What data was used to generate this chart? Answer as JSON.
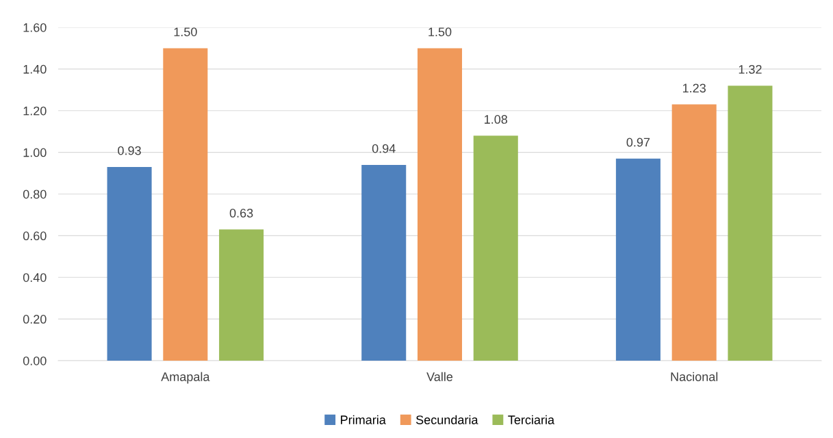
{
  "chart_data": {
    "type": "bar",
    "categories": [
      "Amapala",
      "Valle",
      "Nacional"
    ],
    "series": [
      {
        "name": "Primaria",
        "color": "#4f81bd",
        "values": [
          0.93,
          0.94,
          0.97
        ],
        "value_labels": [
          "0.93",
          "0.94",
          "0.97"
        ]
      },
      {
        "name": "Secundaria",
        "color": "#f0995a",
        "values": [
          1.5,
          1.5,
          1.23
        ],
        "value_labels": [
          "1.50",
          "1.50",
          "1.23"
        ]
      },
      {
        "name": "Terciaria",
        "color": "#9bbb59",
        "values": [
          0.63,
          1.08,
          1.32
        ],
        "value_labels": [
          "0.63",
          "1.08",
          "1.32"
        ]
      }
    ],
    "ylim": [
      0,
      1.6
    ],
    "yticks": [
      {
        "value": 0,
        "label": "0.00"
      },
      {
        "value": 0.2,
        "label": "0.20"
      },
      {
        "value": 0.4,
        "label": "0.40"
      },
      {
        "value": 0.6,
        "label": "0.60"
      },
      {
        "value": 0.8,
        "label": "0.80"
      },
      {
        "value": 1.0,
        "label": "1.00"
      },
      {
        "value": 1.2,
        "label": "1.20"
      },
      {
        "value": 1.4,
        "label": "1.40"
      },
      {
        "value": 1.6,
        "label": "1.60"
      }
    ],
    "grid": "y",
    "legend": "bottom"
  }
}
